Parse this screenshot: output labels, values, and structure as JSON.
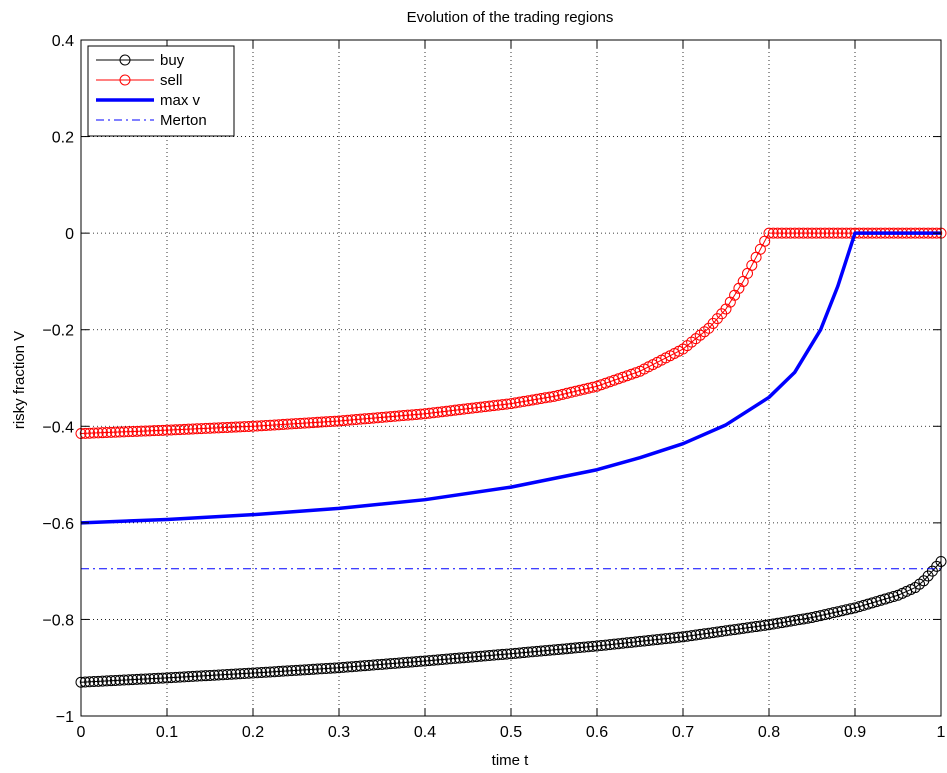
{
  "chart_data": {
    "type": "line",
    "title": "Evolution of the trading regions",
    "xlabel": "time t",
    "ylabel": "risky fraction V",
    "xlim": [
      0,
      1
    ],
    "ylim": [
      -1,
      0.4
    ],
    "xticks": [
      0,
      0.1,
      0.2,
      0.3,
      0.4,
      0.5,
      0.6,
      0.7,
      0.8,
      0.9,
      1
    ],
    "xtick_labels": [
      "0",
      "0.1",
      "0.2",
      "0.3",
      "0.4",
      "0.5",
      "0.6",
      "0.7",
      "0.8",
      "0.9",
      "1"
    ],
    "yticks": [
      -1,
      -0.8,
      -0.6,
      -0.4,
      -0.2,
      0,
      0.2,
      0.4
    ],
    "ytick_labels": [
      "−1",
      "−0.8",
      "−0.6",
      "−0.4",
      "−0.2",
      "0",
      "0.2",
      "0.4"
    ],
    "grid": true,
    "legend_position": "top-left",
    "series": [
      {
        "name": "buy",
        "color": "#000000",
        "style": "circle-markers",
        "x": [
          0,
          0.1,
          0.2,
          0.3,
          0.4,
          0.5,
          0.6,
          0.7,
          0.8,
          0.85,
          0.9,
          0.95,
          0.97,
          0.98,
          0.99,
          1.0
        ],
        "y": [
          -0.93,
          -0.921,
          -0.911,
          -0.9,
          -0.886,
          -0.871,
          -0.855,
          -0.836,
          -0.811,
          -0.796,
          -0.776,
          -0.75,
          -0.734,
          -0.72,
          -0.7,
          -0.68
        ]
      },
      {
        "name": "sell",
        "color": "#ff0000",
        "style": "circle-markers",
        "x": [
          0,
          0.1,
          0.2,
          0.3,
          0.4,
          0.5,
          0.55,
          0.6,
          0.65,
          0.7,
          0.73,
          0.75,
          0.77,
          0.785,
          0.8,
          0.85,
          0.9,
          0.95,
          1.0
        ],
        "y": [
          -0.415,
          -0.408,
          -0.4,
          -0.389,
          -0.374,
          -0.353,
          -0.338,
          -0.317,
          -0.286,
          -0.24,
          -0.197,
          -0.157,
          -0.1,
          -0.05,
          0,
          0,
          0,
          0,
          0
        ]
      },
      {
        "name": "max v",
        "color": "#0000ff",
        "style": "thick-line",
        "x": [
          0,
          0.1,
          0.2,
          0.3,
          0.4,
          0.5,
          0.6,
          0.65,
          0.7,
          0.75,
          0.8,
          0.83,
          0.86,
          0.88,
          0.9,
          0.95,
          1.0
        ],
        "y": [
          -0.6,
          -0.593,
          -0.583,
          -0.57,
          -0.552,
          -0.526,
          -0.49,
          -0.465,
          -0.436,
          -0.397,
          -0.34,
          -0.288,
          -0.2,
          -0.11,
          0,
          0,
          0
        ]
      },
      {
        "name": "Merton",
        "color": "#0000ff",
        "style": "dash-dot",
        "x": [
          0,
          1
        ],
        "y": [
          -0.695,
          -0.695
        ]
      }
    ]
  }
}
